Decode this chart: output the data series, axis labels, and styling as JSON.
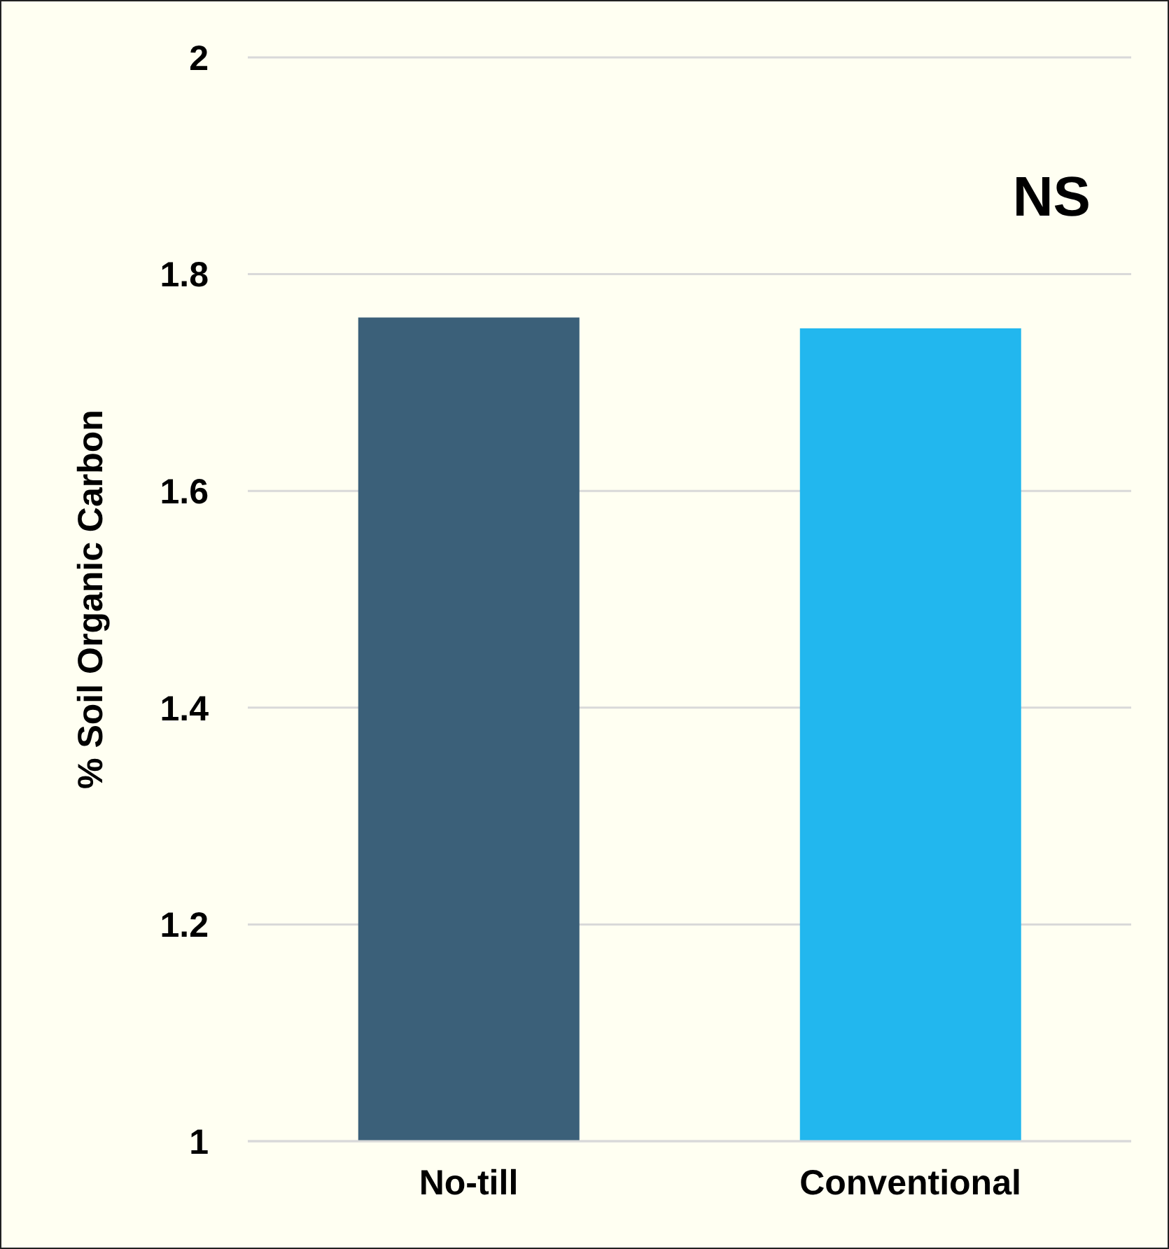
{
  "chart_data": {
    "type": "bar",
    "ylabel": "% Soil Organic Carbon",
    "categories": [
      "No-till",
      "Conventional"
    ],
    "values": [
      1.76,
      1.75
    ],
    "colors": [
      "#3b6079",
      "#22b7ee"
    ],
    "ylim": [
      1,
      2
    ],
    "yticks": [
      1,
      1.2,
      1.4,
      1.6,
      1.8,
      2
    ],
    "grid": "y",
    "annotations": [
      "NS"
    ]
  }
}
